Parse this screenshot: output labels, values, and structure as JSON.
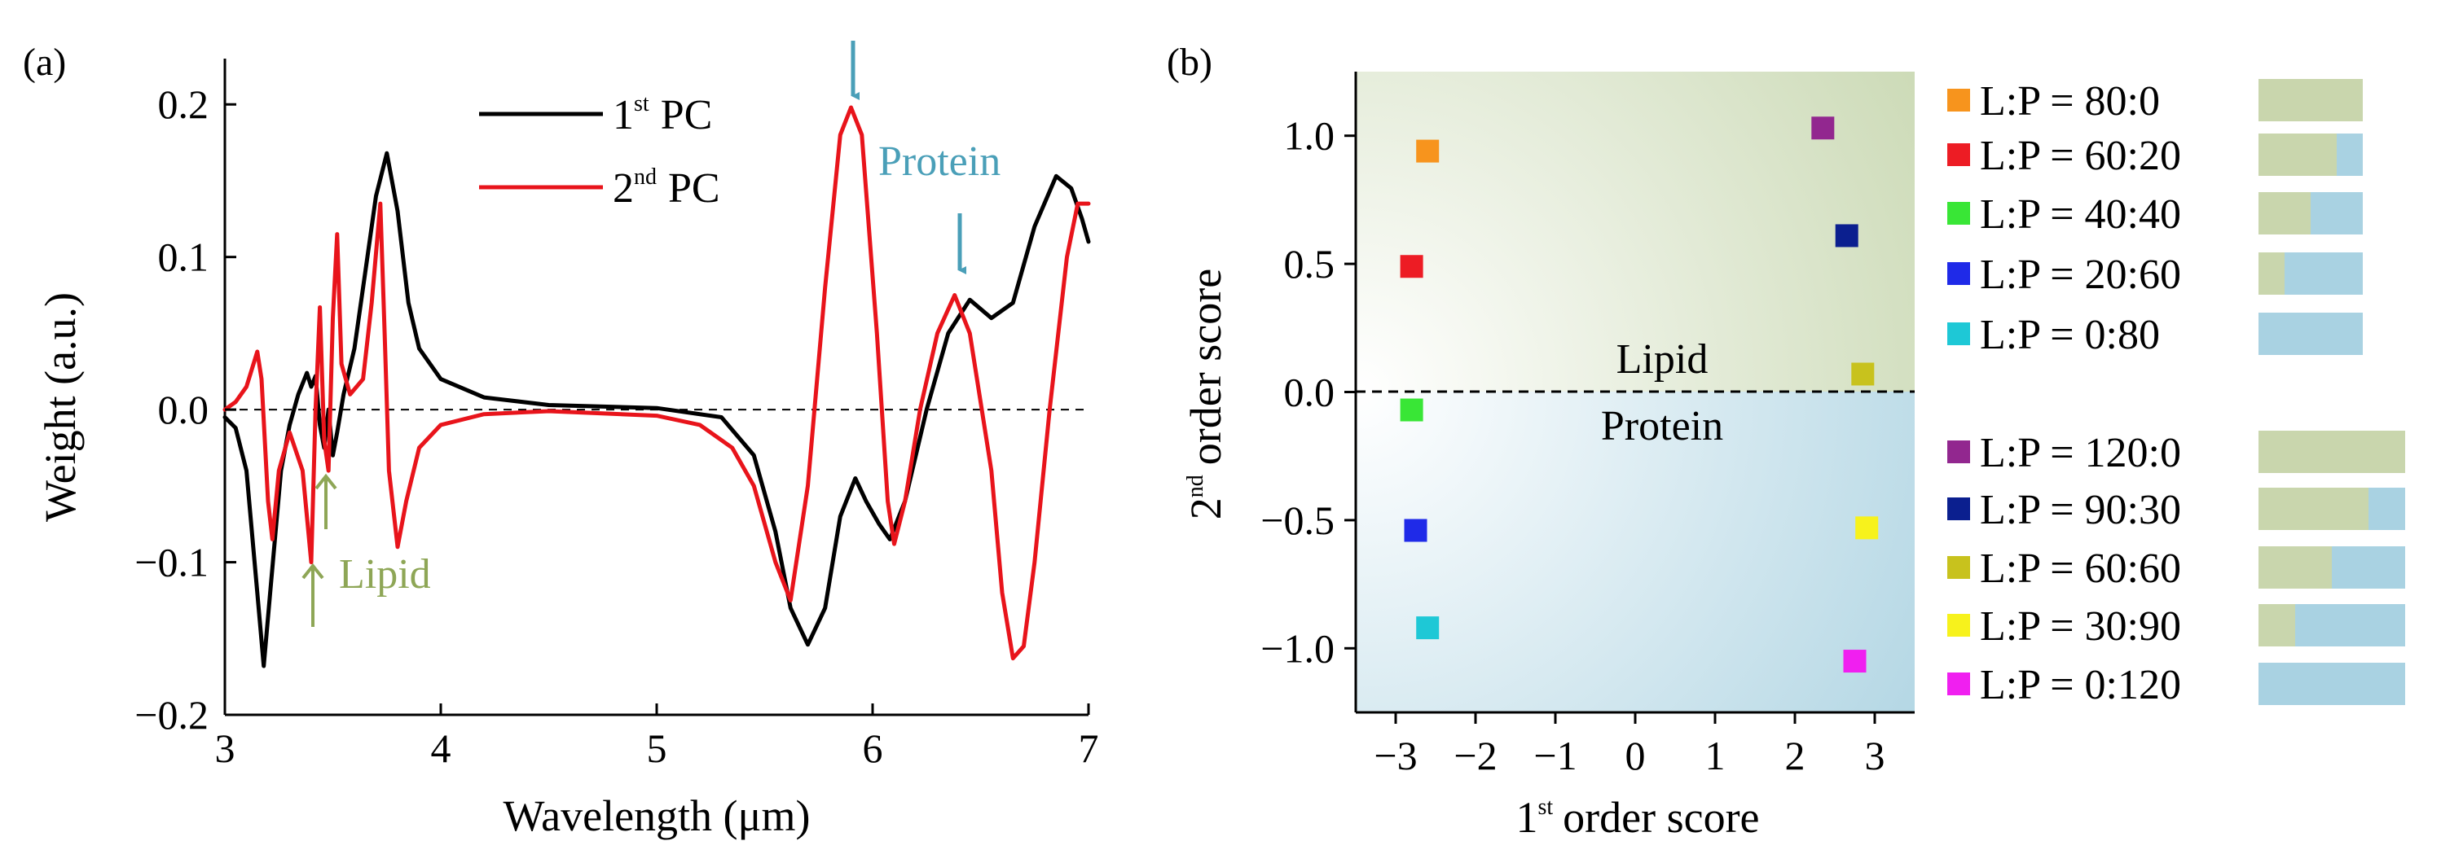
{
  "chart_data": [
    {
      "type": "line",
      "panel_label": "(a)",
      "xlabel": "Wavelength (μm)",
      "ylabel": "Weight (a.u.)",
      "xlim": [
        3,
        7
      ],
      "ylim": [
        -0.2,
        0.23
      ],
      "x_ticks": [
        "3",
        "4",
        "5",
        "6",
        "7"
      ],
      "y_ticks": [
        "-0.2",
        "-0.1",
        "0.0",
        "0.1",
        "0.2"
      ],
      "series": [
        {
          "name_base": "1",
          "name_sup": "st",
          "name_tail": "PC",
          "color": "#000000",
          "points": [
            [
              3.0,
              -0.005
            ],
            [
              3.05,
              -0.012
            ],
            [
              3.1,
              -0.04
            ],
            [
              3.15,
              -0.12
            ],
            [
              3.18,
              -0.168
            ],
            [
              3.21,
              -0.12
            ],
            [
              3.26,
              -0.04
            ],
            [
              3.3,
              -0.01
            ],
            [
              3.34,
              0.01
            ],
            [
              3.38,
              0.024
            ],
            [
              3.4,
              0.015
            ],
            [
              3.42,
              0.022
            ],
            [
              3.44,
              -0.01
            ],
            [
              3.46,
              -0.025
            ],
            [
              3.48,
              0.0
            ],
            [
              3.5,
              -0.03
            ],
            [
              3.52,
              -0.015
            ],
            [
              3.55,
              0.01
            ],
            [
              3.6,
              0.04
            ],
            [
              3.65,
              0.09
            ],
            [
              3.7,
              0.14
            ],
            [
              3.75,
              0.168
            ],
            [
              3.8,
              0.13
            ],
            [
              3.85,
              0.07
            ],
            [
              3.9,
              0.04
            ],
            [
              4.0,
              0.02
            ],
            [
              4.2,
              0.008
            ],
            [
              4.5,
              0.003
            ],
            [
              5.0,
              0.001
            ],
            [
              5.3,
              -0.005
            ],
            [
              5.45,
              -0.03
            ],
            [
              5.55,
              -0.08
            ],
            [
              5.62,
              -0.13
            ],
            [
              5.7,
              -0.154
            ],
            [
              5.78,
              -0.13
            ],
            [
              5.85,
              -0.07
            ],
            [
              5.92,
              -0.045
            ],
            [
              5.97,
              -0.06
            ],
            [
              6.03,
              -0.075
            ],
            [
              6.08,
              -0.085
            ],
            [
              6.15,
              -0.06
            ],
            [
              6.25,
              0.0
            ],
            [
              6.35,
              0.05
            ],
            [
              6.45,
              0.072
            ],
            [
              6.55,
              0.06
            ],
            [
              6.65,
              0.07
            ],
            [
              6.75,
              0.12
            ],
            [
              6.85,
              0.153
            ],
            [
              6.92,
              0.145
            ],
            [
              6.97,
              0.125
            ],
            [
              7.0,
              0.11
            ]
          ]
        },
        {
          "name_base": "2",
          "name_sup": "nd",
          "name_tail": "PC",
          "color": "#e8141b",
          "points": [
            [
              3.0,
              0.0
            ],
            [
              3.05,
              0.005
            ],
            [
              3.1,
              0.015
            ],
            [
              3.15,
              0.038
            ],
            [
              3.17,
              0.02
            ],
            [
              3.2,
              -0.06
            ],
            [
              3.22,
              -0.085
            ],
            [
              3.25,
              -0.04
            ],
            [
              3.3,
              -0.015
            ],
            [
              3.36,
              -0.04
            ],
            [
              3.4,
              -0.1
            ],
            [
              3.42,
              0.0
            ],
            [
              3.44,
              0.067
            ],
            [
              3.46,
              -0.02
            ],
            [
              3.48,
              -0.04
            ],
            [
              3.5,
              0.06
            ],
            [
              3.52,
              0.115
            ],
            [
              3.54,
              0.03
            ],
            [
              3.58,
              0.01
            ],
            [
              3.64,
              0.02
            ],
            [
              3.68,
              0.07
            ],
            [
              3.72,
              0.135
            ],
            [
              3.74,
              0.05
            ],
            [
              3.76,
              -0.04
            ],
            [
              3.8,
              -0.09
            ],
            [
              3.84,
              -0.06
            ],
            [
              3.9,
              -0.025
            ],
            [
              4.0,
              -0.01
            ],
            [
              4.2,
              -0.003
            ],
            [
              4.5,
              -0.001
            ],
            [
              5.0,
              -0.004
            ],
            [
              5.2,
              -0.01
            ],
            [
              5.35,
              -0.025
            ],
            [
              5.45,
              -0.05
            ],
            [
              5.55,
              -0.1
            ],
            [
              5.62,
              -0.125
            ],
            [
              5.7,
              -0.05
            ],
            [
              5.78,
              0.08
            ],
            [
              5.85,
              0.18
            ],
            [
              5.9,
              0.198
            ],
            [
              5.95,
              0.18
            ],
            [
              6.02,
              0.05
            ],
            [
              6.07,
              -0.06
            ],
            [
              6.1,
              -0.088
            ],
            [
              6.15,
              -0.06
            ],
            [
              6.22,
              0.0
            ],
            [
              6.3,
              0.05
            ],
            [
              6.38,
              0.075
            ],
            [
              6.45,
              0.05
            ],
            [
              6.55,
              -0.04
            ],
            [
              6.6,
              -0.12
            ],
            [
              6.65,
              -0.163
            ],
            [
              6.7,
              -0.155
            ],
            [
              6.75,
              -0.1
            ],
            [
              6.82,
              0.0
            ],
            [
              6.9,
              0.1
            ],
            [
              6.95,
              0.135
            ],
            [
              7.0,
              0.135
            ]
          ]
        }
      ],
      "annotations": [
        {
          "text": "Protein",
          "color": "#4a9fb8"
        },
        {
          "text": "Lipid",
          "color": "#8ea656"
        }
      ]
    },
    {
      "type": "scatter",
      "panel_label": "(b)",
      "xlabel_base": "1",
      "xlabel_sup": "st",
      "xlabel_tail": "order score",
      "ylabel_base": "2",
      "ylabel_sup": "nd",
      "ylabel_tail": "order score",
      "xlim": [
        -3.5,
        3.5
      ],
      "ylim": [
        -1.25,
        1.25
      ],
      "x_ticks": [
        "-3",
        "-2",
        "-1",
        "0",
        "1",
        "2",
        "3"
      ],
      "y_ticks": [
        "-1.0",
        "-0.5",
        "0.0",
        "0.5",
        "1.0"
      ],
      "region_labels": {
        "upper": "Lipid",
        "lower": "Protein"
      },
      "colors": {
        "lipid": "#c9d6ad",
        "protein": "#a9d2e2"
      },
      "points": [
        {
          "label": "L:P = 80:0",
          "x": -2.6,
          "y": 0.94,
          "color": "#f7941d",
          "lipid": 80,
          "protein": 0
        },
        {
          "label": "L:P = 60:20",
          "x": -2.8,
          "y": 0.49,
          "color": "#ed1c24",
          "lipid": 60,
          "protein": 20
        },
        {
          "label": "L:P = 40:40",
          "x": -2.8,
          "y": -0.07,
          "color": "#39e636",
          "lipid": 40,
          "protein": 40
        },
        {
          "label": "L:P = 20:60",
          "x": -2.75,
          "y": -0.54,
          "color": "#1f2ae8",
          "lipid": 20,
          "protein": 60
        },
        {
          "label": "L:P = 0:80",
          "x": -2.6,
          "y": -0.92,
          "color": "#1ec8d6",
          "lipid": 0,
          "protein": 80
        },
        {
          "label": "L:P = 120:0",
          "x": 2.35,
          "y": 1.03,
          "color": "#92278f",
          "lipid": 120,
          "protein": 0
        },
        {
          "label": "L:P = 90:30",
          "x": 2.65,
          "y": 0.61,
          "color": "#0b1f8f",
          "lipid": 90,
          "protein": 30
        },
        {
          "label": "L:P = 60:60",
          "x": 2.85,
          "y": 0.07,
          "color": "#c8c21d",
          "lipid": 60,
          "protein": 60
        },
        {
          "label": "L:P = 30:90",
          "x": 2.9,
          "y": -0.53,
          "color": "#f7f21c",
          "lipid": 30,
          "protein": 90
        },
        {
          "label": "L:P = 0:120",
          "x": 2.75,
          "y": -1.05,
          "color": "#f01ff0",
          "lipid": 0,
          "protein": 120
        }
      ]
    }
  ]
}
